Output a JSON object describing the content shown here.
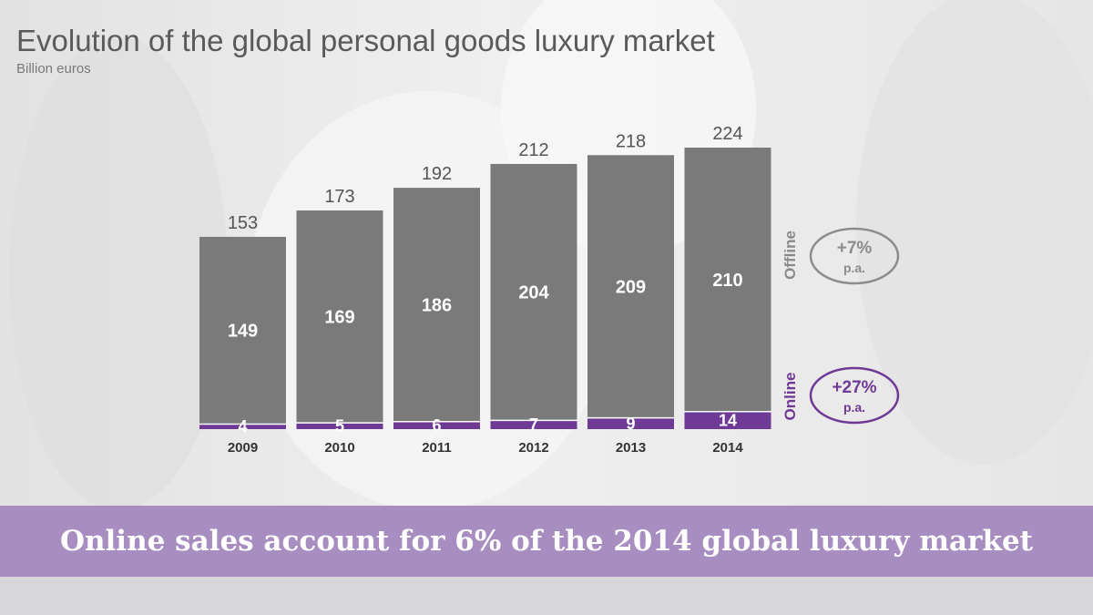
{
  "header": {
    "title": "Evolution of the global personal goods luxury market",
    "subtitle": "Billion euros"
  },
  "chart_data": {
    "type": "bar",
    "stacked": true,
    "categories": [
      "2009",
      "2010",
      "2011",
      "2012",
      "2013",
      "2014"
    ],
    "series": [
      {
        "name": "Online",
        "values": [
          4,
          5,
          6,
          7,
          9,
          14
        ],
        "color": "#6f3a96"
      },
      {
        "name": "Offline",
        "values": [
          149,
          169,
          186,
          204,
          209,
          210
        ],
        "color": "#7a7a7a"
      }
    ],
    "totals": [
      153,
      173,
      192,
      212,
      218,
      224
    ],
    "growth_annotations": [
      {
        "series": "Offline",
        "line1": "+7%",
        "line2": "p.a.",
        "color": "#8c8c8c"
      },
      {
        "series": "Online",
        "line1": "+27%",
        "line2": "p.a.",
        "color": "#6f3a96"
      }
    ],
    "title": "Evolution of the global personal goods luxury market",
    "ylabel": "Billion euros",
    "ylim": [
      0,
      224
    ]
  },
  "banner": {
    "text": "Online sales account for 6% of the 2014 global luxury market"
  }
}
